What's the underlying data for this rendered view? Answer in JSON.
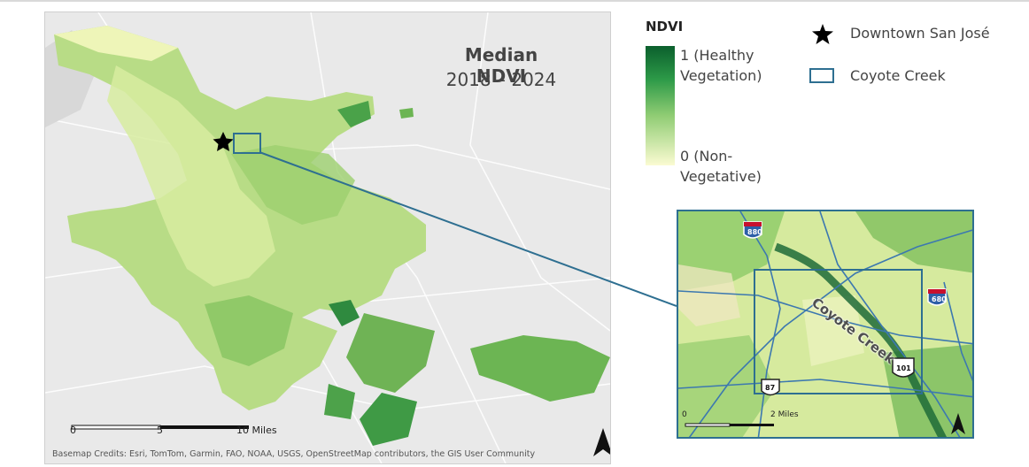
{
  "map": {
    "title": "Median NDVI",
    "subtitle": "2018 – 2024",
    "scale_labels": [
      "0",
      "5",
      "10 Miles"
    ],
    "credits": "Basemap Credits: Esri, TomTom, Garmin, FAO, NOAA, USGS,  OpenStreetMap contributors, the GIS User Community",
    "north_arrow": "north-arrow-icon",
    "downtown_marker": "star-icon"
  },
  "legend": {
    "title": "NDVI",
    "high_label": "1 (Healthy Vegetation)",
    "low_label": "0 (Non-Vegetative)",
    "ramp_colors": [
      "#0b5f2d",
      "#2d9a48",
      "#8fcc73",
      "#fbfbd2"
    ],
    "downtown_label": "Downtown San José",
    "creek_label": "Coyote Creek",
    "creek_box_color": "#2e6f91"
  },
  "inset": {
    "creek_name": "Coyote Creek",
    "scale_label": "2 Miles",
    "scale_zero": "0",
    "highway_shields": [
      "880",
      "680",
      "101",
      "87"
    ]
  }
}
